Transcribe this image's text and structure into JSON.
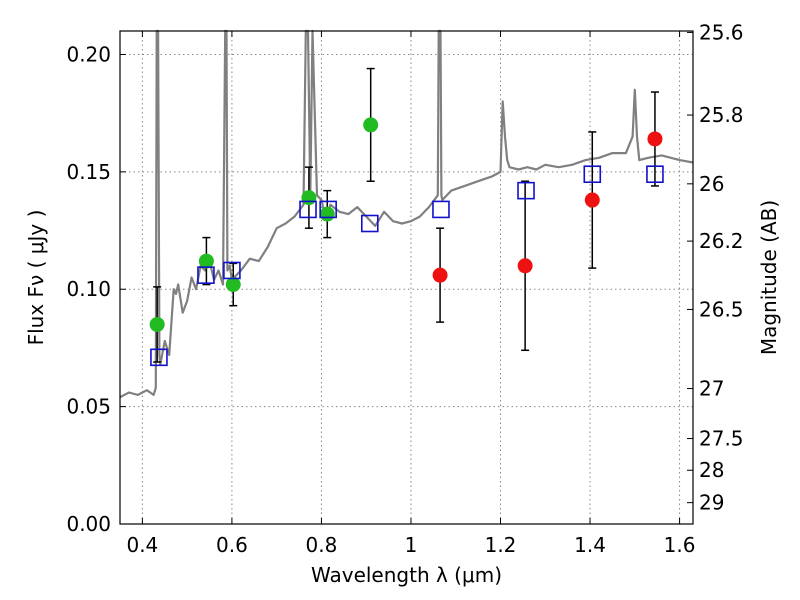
{
  "chart_data": {
    "type": "scatter",
    "xlabel": "Wavelength  λ (μm)",
    "ylabel": "Flux  Fν  ( μJy )",
    "y2label": "Magnitude (AB)",
    "xlim": [
      0.35,
      1.63
    ],
    "ylim": [
      0.0,
      0.21
    ],
    "x_ticks": [
      0.4,
      0.6,
      0.8,
      1,
      1.2,
      1.4,
      1.6
    ],
    "x_tick_labels": [
      "0.4",
      "0.6",
      "0.8",
      "1",
      "1.2",
      "1.4",
      "1.6"
    ],
    "y_ticks": [
      0.0,
      0.05,
      0.1,
      0.15,
      0.2
    ],
    "y_tick_labels": [
      "0.00",
      "0.05",
      "0.10",
      "0.15",
      "0.20"
    ],
    "y2_ticks": [
      {
        "label": "25.6",
        "flux": 0.2094
      },
      {
        "label": "25.8",
        "flux": 0.1742
      },
      {
        "label": "26",
        "flux": 0.1449
      },
      {
        "label": "26.2",
        "flux": 0.1205
      },
      {
        "label": "26.5",
        "flux": 0.0914
      },
      {
        "label": "27",
        "flux": 0.0577
      },
      {
        "label": "27.5",
        "flux": 0.0364
      },
      {
        "label": "28",
        "flux": 0.0229
      },
      {
        "label": "29",
        "flux": 0.0091
      }
    ],
    "grid": true,
    "colors": {
      "spectrum": "#808080",
      "green": "#22bb22",
      "red": "#ee1111",
      "model": "#1111cc",
      "errorbar": "#000000"
    },
    "spectrum": {
      "name": "model spectrum",
      "x": [
        0.35,
        0.37,
        0.39,
        0.41,
        0.425,
        0.43,
        0.432,
        0.435,
        0.438,
        0.44,
        0.45,
        0.46,
        0.47,
        0.475,
        0.48,
        0.49,
        0.5,
        0.51,
        0.52,
        0.53,
        0.54,
        0.55,
        0.56,
        0.57,
        0.58,
        0.585,
        0.588,
        0.59,
        0.595,
        0.6,
        0.62,
        0.64,
        0.66,
        0.68,
        0.7,
        0.72,
        0.74,
        0.76,
        0.765,
        0.77,
        0.775,
        0.78,
        0.79,
        0.8,
        0.81,
        0.82,
        0.84,
        0.86,
        0.88,
        0.9,
        0.92,
        0.94,
        0.96,
        0.98,
        1.0,
        1.02,
        1.04,
        1.06,
        1.062,
        1.064,
        1.066,
        1.068,
        1.07,
        1.09,
        1.12,
        1.15,
        1.18,
        1.2,
        1.205,
        1.21,
        1.215,
        1.22,
        1.24,
        1.26,
        1.28,
        1.3,
        1.33,
        1.36,
        1.39,
        1.42,
        1.45,
        1.48,
        1.495,
        1.5,
        1.505,
        1.51,
        1.53,
        1.56,
        1.6,
        1.63
      ],
      "y": [
        0.054,
        0.056,
        0.055,
        0.057,
        0.055,
        0.058,
        0.21,
        0.21,
        0.072,
        0.068,
        0.078,
        0.072,
        0.1,
        0.098,
        0.102,
        0.09,
        0.095,
        0.105,
        0.1,
        0.11,
        0.108,
        0.112,
        0.104,
        0.108,
        0.102,
        0.21,
        0.21,
        0.108,
        0.11,
        0.104,
        0.108,
        0.113,
        0.112,
        0.118,
        0.126,
        0.128,
        0.131,
        0.136,
        0.21,
        0.21,
        0.14,
        0.21,
        0.14,
        0.138,
        0.13,
        0.136,
        0.133,
        0.132,
        0.135,
        0.131,
        0.127,
        0.133,
        0.129,
        0.128,
        0.129,
        0.131,
        0.135,
        0.14,
        0.21,
        0.21,
        0.21,
        0.14,
        0.138,
        0.142,
        0.144,
        0.146,
        0.148,
        0.15,
        0.18,
        0.165,
        0.155,
        0.152,
        0.151,
        0.152,
        0.151,
        0.153,
        0.152,
        0.153,
        0.155,
        0.156,
        0.158,
        0.158,
        0.165,
        0.185,
        0.165,
        0.155,
        0.156,
        0.157,
        0.155,
        0.154
      ]
    },
    "series": [
      {
        "name": "observed (green)",
        "color": "#22bb22",
        "marker": "circle",
        "x": [
          0.433,
          0.543,
          0.603,
          0.772,
          0.813,
          0.91
        ],
        "y": [
          0.085,
          0.112,
          0.102,
          0.139,
          0.132,
          0.17
        ],
        "err": [
          0.016,
          0.01,
          0.009,
          0.013,
          0.01,
          0.024
        ]
      },
      {
        "name": "observed (red)",
        "color": "#ee1111",
        "marker": "circle",
        "x": [
          1.065,
          1.255,
          1.405,
          1.545
        ],
        "y": [
          0.106,
          0.11,
          0.138,
          0.164
        ],
        "err": [
          0.02,
          0.036,
          0.029,
          0.02
        ]
      },
      {
        "name": "model photometry",
        "color": "#1111cc",
        "marker": "open-square",
        "x": [
          0.437,
          0.542,
          0.6,
          0.77,
          0.815,
          0.908,
          1.067,
          1.257,
          1.405,
          1.545
        ],
        "y": [
          0.071,
          0.106,
          0.108,
          0.134,
          0.134,
          0.128,
          0.134,
          0.142,
          0.149,
          0.149
        ]
      }
    ]
  }
}
